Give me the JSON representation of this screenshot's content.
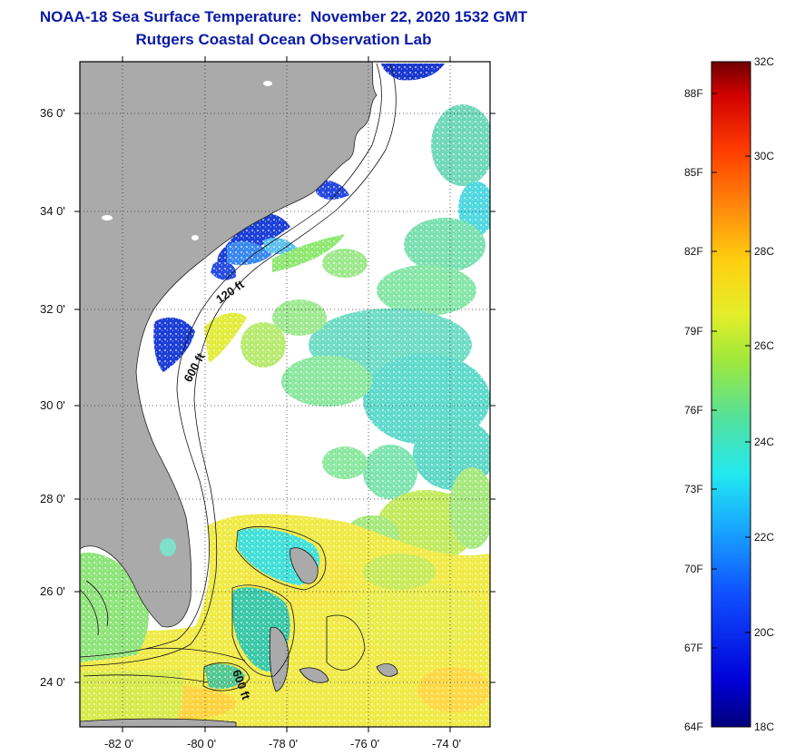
{
  "title": {
    "line1": "NOAA-18 Sea Surface Temperature:  November 22, 2020 1532 GMT",
    "line2": "Rutgers Coastal Ocean Observation Lab"
  },
  "map": {
    "lat_labels": [
      "36 0'",
      "34 0'",
      "32 0'",
      "30 0'",
      "28 0'",
      "26 0'",
      "24 0'"
    ],
    "lon_labels": [
      "-82 0'",
      "-80 0'",
      "-78 0'",
      "-76 0'",
      "-74 0'"
    ],
    "contour_labels": [
      "120 ft",
      "600 ft",
      "600 ft"
    ],
    "colors": {
      "land": "#aaaaaa",
      "cloud": "#ffffff",
      "warm": "#f2ea3a",
      "mid": "#8ee85e",
      "cool": "#5fdccf",
      "cold": "#1c3fd8"
    }
  },
  "colorbar": {
    "fahrenheit": [
      "88F",
      "85F",
      "82F",
      "79F",
      "76F",
      "73F",
      "70F",
      "67F",
      "64F"
    ],
    "celsius": [
      "32C",
      "30C",
      "28C",
      "26C",
      "24C",
      "22C",
      "20C",
      "18C"
    ]
  }
}
